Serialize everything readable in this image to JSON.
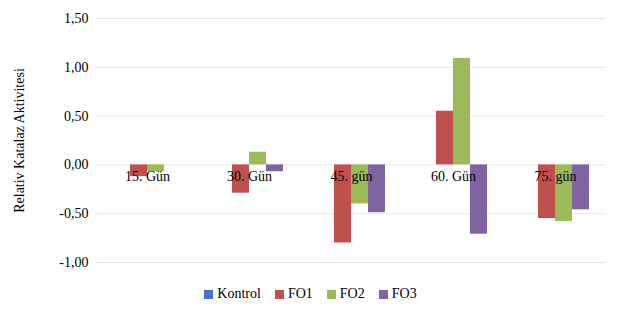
{
  "chart_data": {
    "type": "bar",
    "y_label": "Relativ Katalaz Aktivitesi",
    "categories": [
      "15. Gün",
      "30. Gün",
      "45. gün",
      "60. Gün",
      "75. gün"
    ],
    "series": [
      {
        "name": "Kontrol",
        "color": "#4472c4",
        "values": [
          0,
          0,
          0,
          0,
          0
        ]
      },
      {
        "name": "FO1",
        "color": "#c0504d",
        "values": [
          -0.12,
          -0.29,
          -0.8,
          0.55,
          -0.55
        ]
      },
      {
        "name": "FO2",
        "color": "#9bbb59",
        "values": [
          -0.07,
          0.13,
          -0.4,
          1.09,
          -0.58
        ]
      },
      {
        "name": "FO3",
        "color": "#8064a2",
        "values": [
          0,
          -0.07,
          -0.49,
          -0.71,
          -0.46
        ]
      }
    ],
    "ylim": [
      -1,
      1.5
    ],
    "yticks": [
      {
        "value": -1,
        "label": "-1,00"
      },
      {
        "value": -0.5,
        "label": "-0,50"
      },
      {
        "value": 0,
        "label": "0,00"
      },
      {
        "value": 0.5,
        "label": "0,50"
      },
      {
        "value": 1,
        "label": "1,00"
      },
      {
        "value": 1.5,
        "label": "1,50"
      }
    ],
    "grid": true,
    "legend": "bottom"
  }
}
